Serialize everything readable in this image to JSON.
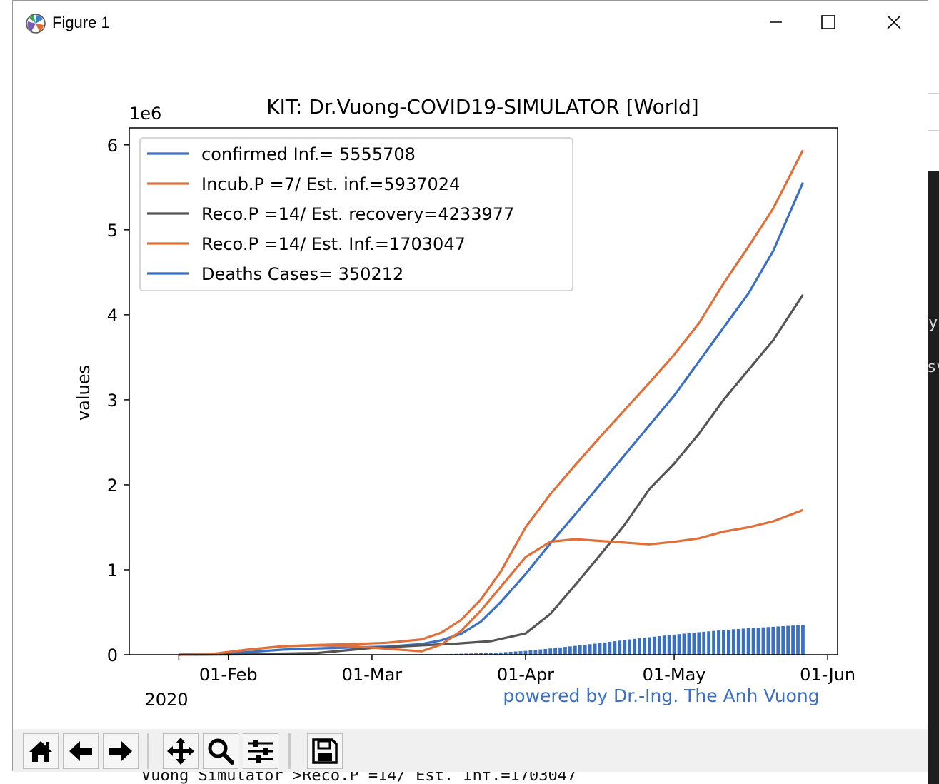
{
  "window": {
    "title": "Figure 1",
    "controls": [
      "minimize",
      "maximize",
      "close"
    ]
  },
  "toolbar": {
    "buttons": [
      {
        "name": "home",
        "icon": "home-icon"
      },
      {
        "name": "back",
        "icon": "arrow-left-icon"
      },
      {
        "name": "forward",
        "icon": "arrow-right-icon"
      },
      {
        "name": "pan",
        "icon": "move-icon"
      },
      {
        "name": "zoom",
        "icon": "magnifier-icon"
      },
      {
        "name": "subplots",
        "icon": "sliders-icon"
      },
      {
        "name": "save",
        "icon": "floppy-disk-icon"
      }
    ]
  },
  "background": {
    "terminal_fragment": "Vuong Simulator >Reco.P =14/ Est. Inf.=1703047",
    "right_text_1": "y",
    "right_text_2": "sv"
  },
  "chart_data": {
    "type": "line",
    "title": "KIT: Dr.Vuong-COVID19-SIMULATOR [World]",
    "ylabel": "values",
    "xlabel": "",
    "y_scale_label": "1e6",
    "x_offset_label": "2020",
    "watermark": "powered by Dr.-Ing. The Anh Vuong",
    "ylim": [
      0,
      6200000
    ],
    "xlim": [
      "2020-01-12",
      "2020-06-03"
    ],
    "x_ticks": [
      {
        "date": "2020-01-22",
        "label": ""
      },
      {
        "date": "2020-02-01",
        "label": "01-Feb"
      },
      {
        "date": "2020-03-01",
        "label": "01-Mar"
      },
      {
        "date": "2020-04-01",
        "label": "01-Apr"
      },
      {
        "date": "2020-05-01",
        "label": "01-May"
      },
      {
        "date": "2020-06-01",
        "label": "01-Jun"
      }
    ],
    "y_ticks": [
      0,
      1000000,
      2000000,
      3000000,
      4000000,
      5000000,
      6000000
    ],
    "y_tick_labels": [
      "0",
      "1",
      "2",
      "3",
      "4",
      "5",
      "6"
    ],
    "grid": false,
    "legend_position": "upper-left",
    "series": [
      {
        "name": "confirmed Inf.= 5555708",
        "color": "#3b6fc3",
        "style": "line",
        "x": [
          "2020-01-22",
          "2020-01-29",
          "2020-02-05",
          "2020-02-12",
          "2020-02-19",
          "2020-02-26",
          "2020-03-04",
          "2020-03-11",
          "2020-03-15",
          "2020-03-19",
          "2020-03-23",
          "2020-03-27",
          "2020-04-01",
          "2020-04-06",
          "2020-04-11",
          "2020-04-16",
          "2020-04-21",
          "2020-04-26",
          "2020-05-01",
          "2020-05-06",
          "2020-05-11",
          "2020-05-16",
          "2020-05-21",
          "2020-05-27"
        ],
        "values": [
          0,
          5000,
          30000,
          60000,
          75000,
          85000,
          95000,
          125000,
          170000,
          245000,
          390000,
          620000,
          950000,
          1310000,
          1650000,
          2000000,
          2350000,
          2700000,
          3050000,
          3450000,
          3850000,
          4250000,
          4750000,
          5555708
        ]
      },
      {
        "name": "Incub.P =7/ Est. inf.=5937024",
        "color": "#e0703a",
        "style": "line",
        "x": [
          "2020-01-22",
          "2020-01-29",
          "2020-02-05",
          "2020-02-12",
          "2020-02-19",
          "2020-02-26",
          "2020-03-04",
          "2020-03-11",
          "2020-03-15",
          "2020-03-19",
          "2020-03-23",
          "2020-03-27",
          "2020-04-01",
          "2020-04-06",
          "2020-04-11",
          "2020-04-16",
          "2020-04-21",
          "2020-04-26",
          "2020-05-01",
          "2020-05-06",
          "2020-05-11",
          "2020-05-16",
          "2020-05-21",
          "2020-05-27"
        ],
        "values": [
          0,
          10000,
          60000,
          100000,
          115000,
          125000,
          140000,
          180000,
          260000,
          410000,
          650000,
          980000,
          1500000,
          1890000,
          2230000,
          2560000,
          2880000,
          3200000,
          3530000,
          3900000,
          4370000,
          4800000,
          5250000,
          5937024
        ]
      },
      {
        "name": "Reco.P =14/ Est. recovery=4233977",
        "color": "#555555",
        "style": "line",
        "x": [
          "2020-01-22",
          "2020-02-05",
          "2020-02-19",
          "2020-03-01",
          "2020-03-11",
          "2020-03-18",
          "2020-03-25",
          "2020-04-01",
          "2020-04-06",
          "2020-04-11",
          "2020-04-16",
          "2020-04-21",
          "2020-04-26",
          "2020-05-01",
          "2020-05-06",
          "2020-05-11",
          "2020-05-16",
          "2020-05-21",
          "2020-05-27"
        ],
        "values": [
          0,
          5000,
          20000,
          80000,
          110000,
          130000,
          160000,
          250000,
          480000,
          820000,
          1170000,
          1530000,
          1950000,
          2250000,
          2600000,
          3000000,
          3350000,
          3700000,
          4233977
        ]
      },
      {
        "name": "Reco.P =14/ Est. Inf.=1703047",
        "color": "#e0703a",
        "style": "line",
        "x": [
          "2020-01-22",
          "2020-01-29",
          "2020-02-05",
          "2020-02-12",
          "2020-02-19",
          "2020-02-26",
          "2020-03-04",
          "2020-03-11",
          "2020-03-15",
          "2020-03-19",
          "2020-03-23",
          "2020-03-27",
          "2020-04-01",
          "2020-04-06",
          "2020-04-11",
          "2020-04-16",
          "2020-04-21",
          "2020-04-26",
          "2020-05-01",
          "2020-05-06",
          "2020-05-11",
          "2020-05-16",
          "2020-05-21",
          "2020-05-27"
        ],
        "values": [
          0,
          10000,
          60000,
          100000,
          110000,
          100000,
          70000,
          40000,
          120000,
          280000,
          520000,
          800000,
          1150000,
          1330000,
          1360000,
          1340000,
          1320000,
          1300000,
          1330000,
          1370000,
          1450000,
          1500000,
          1570000,
          1703047
        ]
      },
      {
        "name": "Deaths Cases= 350212",
        "color": "#3b6fc3",
        "style": "bar",
        "x": [
          "2020-03-01",
          "2020-03-15",
          "2020-03-25",
          "2020-04-01",
          "2020-04-08",
          "2020-04-15",
          "2020-04-22",
          "2020-04-29",
          "2020-05-06",
          "2020-05-13",
          "2020-05-20",
          "2020-05-27"
        ],
        "values": [
          3000,
          6000,
          20000,
          45000,
          85000,
          130000,
          180000,
          225000,
          265000,
          300000,
          325000,
          350212
        ]
      }
    ]
  }
}
